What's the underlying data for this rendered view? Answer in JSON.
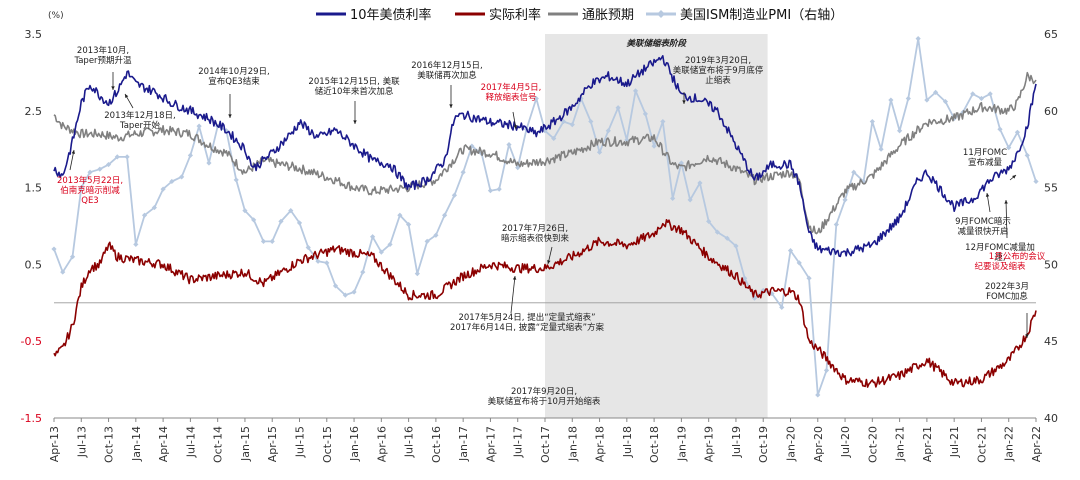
{
  "chart_data": {
    "type": "line",
    "title": "",
    "ylabel_left": "(%)",
    "ylabel_right": "",
    "left_ylim": [
      -1.5,
      3.5
    ],
    "left_yticks": [
      "3.5",
      "2.5",
      "1.5",
      "0.5",
      "-0.5",
      "-1.5"
    ],
    "left_ytick_values": [
      3.5,
      2.5,
      1.5,
      0.5,
      -0.5,
      -1.5
    ],
    "right_ylim": [
      40,
      65
    ],
    "right_yticks": [
      "65",
      "60",
      "55",
      "50",
      "45",
      "40"
    ],
    "right_ytick_values": [
      65,
      60,
      55,
      50,
      45,
      40
    ],
    "x_range": [
      2013.25,
      2022.25
    ],
    "xticks": [
      "Apr-13",
      "Jul-13",
      "Oct-13",
      "Jan-14",
      "Apr-14",
      "Jul-14",
      "Oct-14",
      "Jan-15",
      "Apr-15",
      "Jul-15",
      "Oct-15",
      "Jan-16",
      "Apr-16",
      "Jul-16",
      "Oct-16",
      "Jan-17",
      "Apr-17",
      "Jul-17",
      "Oct-17",
      "Jan-18",
      "Apr-18",
      "Jul-18",
      "Oct-18",
      "Jan-19",
      "Apr-19",
      "Jul-19",
      "Oct-19",
      "Jan-20",
      "Apr-20",
      "Jul-20",
      "Oct-20",
      "Jan-21",
      "Apr-21",
      "Jul-21",
      "Oct-21",
      "Jan-22",
      "Apr-22"
    ],
    "shaded_region": {
      "x": [
        2017.75,
        2019.79
      ],
      "label": "美联储缩表阶段",
      "color": "#e6e6e6"
    },
    "series": [
      {
        "name": "10年美债利率",
        "color": "#1a1a8c",
        "axis": "left",
        "x": [
          2013.25,
          2013.33,
          2013.42,
          2013.5,
          2013.58,
          2013.67,
          2013.75,
          2013.83,
          2013.92,
          2014.0,
          2014.17,
          2014.33,
          2014.5,
          2014.67,
          2014.83,
          2015.0,
          2015.08,
          2015.25,
          2015.42,
          2015.5,
          2015.67,
          2015.83,
          2016.0,
          2016.17,
          2016.33,
          2016.5,
          2016.67,
          2016.83,
          2016.92,
          2017.0,
          2017.25,
          2017.5,
          2017.67,
          2017.83,
          2018.0,
          2018.17,
          2018.33,
          2018.5,
          2018.67,
          2018.83,
          2019.0,
          2019.17,
          2019.33,
          2019.5,
          2019.67,
          2019.83,
          2020.0,
          2020.08,
          2020.17,
          2020.25,
          2020.5,
          2020.75,
          2021.0,
          2021.17,
          2021.25,
          2021.5,
          2021.67,
          2021.83,
          2022.0,
          2022.08,
          2022.17,
          2022.25
        ],
        "values": [
          1.75,
          1.65,
          2.1,
          2.6,
          2.85,
          2.7,
          2.6,
          2.75,
          3.0,
          2.85,
          2.75,
          2.6,
          2.5,
          2.4,
          2.25,
          2.0,
          1.75,
          1.95,
          2.2,
          2.35,
          2.15,
          2.25,
          2.05,
          1.85,
          1.8,
          1.5,
          1.6,
          1.85,
          2.4,
          2.45,
          2.35,
          2.3,
          2.2,
          2.35,
          2.55,
          2.85,
          2.95,
          2.85,
          3.05,
          3.2,
          2.7,
          2.65,
          2.5,
          2.05,
          1.6,
          1.8,
          1.8,
          1.55,
          0.9,
          0.7,
          0.65,
          0.75,
          1.1,
          1.6,
          1.7,
          1.25,
          1.35,
          1.6,
          1.75,
          1.95,
          2.3,
          2.85
        ]
      },
      {
        "name": "实际利率",
        "color": "#8b0000",
        "axis": "left",
        "x": [
          2013.25,
          2013.33,
          2013.42,
          2013.5,
          2013.58,
          2013.67,
          2013.75,
          2013.83,
          2014.0,
          2014.25,
          2014.5,
          2014.75,
          2015.0,
          2015.17,
          2015.5,
          2015.83,
          2016.0,
          2016.17,
          2016.5,
          2016.75,
          2017.0,
          2017.25,
          2017.5,
          2017.75,
          2018.0,
          2018.25,
          2018.5,
          2018.75,
          2018.83,
          2019.0,
          2019.25,
          2019.5,
          2019.67,
          2019.83,
          2020.0,
          2020.08,
          2020.17,
          2020.25,
          2020.5,
          2020.75,
          2021.0,
          2021.25,
          2021.5,
          2021.75,
          2022.0,
          2022.08,
          2022.17,
          2022.25
        ],
        "values": [
          -0.7,
          -0.6,
          -0.3,
          0.2,
          0.45,
          0.5,
          0.75,
          0.6,
          0.55,
          0.5,
          0.3,
          0.35,
          0.4,
          0.25,
          0.55,
          0.7,
          0.65,
          0.6,
          0.1,
          0.1,
          0.35,
          0.5,
          0.45,
          0.45,
          0.6,
          0.8,
          0.75,
          0.9,
          1.05,
          0.95,
          0.6,
          0.35,
          0.1,
          0.15,
          0.15,
          0.05,
          -0.5,
          -0.6,
          -1.0,
          -1.05,
          -0.95,
          -0.75,
          -1.05,
          -1.0,
          -0.75,
          -0.6,
          -0.4,
          -0.1
        ]
      },
      {
        "name": "通胀预期",
        "color": "#808080",
        "axis": "left",
        "x": [
          2013.25,
          2013.33,
          2013.5,
          2013.67,
          2013.83,
          2014.0,
          2014.25,
          2014.5,
          2014.67,
          2014.83,
          2015.0,
          2015.17,
          2015.5,
          2015.83,
          2016.0,
          2016.17,
          2016.5,
          2016.75,
          2017.0,
          2017.25,
          2017.5,
          2017.75,
          2018.0,
          2018.25,
          2018.5,
          2018.75,
          2018.92,
          2019.0,
          2019.25,
          2019.5,
          2019.67,
          2019.83,
          2020.0,
          2020.08,
          2020.17,
          2020.25,
          2020.5,
          2020.75,
          2021.0,
          2021.25,
          2021.5,
          2021.75,
          2022.0,
          2022.08,
          2022.17,
          2022.25
        ],
        "values": [
          2.45,
          2.3,
          2.2,
          2.2,
          2.15,
          2.2,
          2.25,
          2.2,
          2.05,
          1.95,
          1.7,
          1.85,
          1.75,
          1.6,
          1.5,
          1.45,
          1.5,
          1.6,
          2.0,
          1.95,
          1.8,
          1.85,
          1.95,
          2.1,
          2.1,
          2.15,
          1.8,
          1.75,
          1.9,
          1.75,
          1.6,
          1.65,
          1.7,
          1.6,
          1.0,
          0.9,
          1.45,
          1.65,
          2.05,
          2.35,
          2.4,
          2.55,
          2.5,
          2.6,
          2.95,
          2.9
        ]
      },
      {
        "name": "美国ISM制造业PMI（右轴）",
        "color": "#b7c9e0",
        "axis": "right",
        "x": [
          2013.25,
          2013.33,
          2013.42,
          2013.5,
          2013.58,
          2013.67,
          2013.75,
          2013.83,
          2013.92,
          2014.0,
          2014.08,
          2014.17,
          2014.25,
          2014.33,
          2014.42,
          2014.5,
          2014.58,
          2014.67,
          2014.75,
          2014.83,
          2014.92,
          2015.0,
          2015.08,
          2015.17,
          2015.25,
          2015.33,
          2015.42,
          2015.5,
          2015.58,
          2015.67,
          2015.75,
          2015.83,
          2015.92,
          2016.0,
          2016.08,
          2016.17,
          2016.25,
          2016.33,
          2016.42,
          2016.5,
          2016.58,
          2016.67,
          2016.75,
          2016.83,
          2016.92,
          2017.0,
          2017.08,
          2017.17,
          2017.25,
          2017.33,
          2017.42,
          2017.5,
          2017.58,
          2017.67,
          2017.75,
          2017.83,
          2017.92,
          2018.0,
          2018.08,
          2018.17,
          2018.25,
          2018.33,
          2018.42,
          2018.5,
          2018.58,
          2018.67,
          2018.75,
          2018.83,
          2018.92,
          2019.0,
          2019.08,
          2019.17,
          2019.25,
          2019.33,
          2019.42,
          2019.5,
          2019.58,
          2019.67,
          2019.75,
          2019.83,
          2019.92,
          2020.0,
          2020.08,
          2020.17,
          2020.25,
          2020.33,
          2020.42,
          2020.5,
          2020.58,
          2020.67,
          2020.75,
          2020.83,
          2020.92,
          2021.0,
          2021.08,
          2021.17,
          2021.25,
          2021.33,
          2021.42,
          2021.5,
          2021.58,
          2021.67,
          2021.75,
          2021.83,
          2021.92,
          2022.0,
          2022.08,
          2022.17,
          2022.25
        ],
        "values": [
          51,
          49.5,
          50.5,
          55,
          56,
          56.2,
          56.5,
          57,
          57,
          51.3,
          53.2,
          53.7,
          54.9,
          55.4,
          55.7,
          57.1,
          59,
          56.6,
          59,
          58.7,
          55.5,
          53.5,
          52.9,
          51.5,
          51.5,
          52.8,
          53.5,
          52.7,
          51.1,
          50.2,
          50.1,
          48.6,
          48,
          48.2,
          49.5,
          51.8,
          50.8,
          51.3,
          53.2,
          52.6,
          49.4,
          51.5,
          51.9,
          53.2,
          54.5,
          56,
          57.7,
          57.2,
          54.8,
          54.9,
          57.8,
          56.3,
          58.8,
          60.8,
          58.7,
          58.2,
          59.3,
          59.1,
          60.8,
          59.3,
          57.3,
          58.7,
          60.2,
          58.1,
          61.3,
          59.8,
          57.7,
          59.3,
          54.3,
          56.6,
          54.2,
          55.3,
          52.8,
          52.1,
          51.7,
          51.2,
          49.1,
          47.8,
          48.3,
          48.1,
          47.2,
          50.9,
          50.1,
          49.1,
          41.5,
          43.1,
          52.6,
          54.2,
          56,
          55.4,
          59.3,
          57.5,
          60.7,
          58.7,
          60.8,
          64.7,
          60.7,
          61.2,
          60.6,
          59.5,
          59.9,
          61.1,
          60.8,
          61.1,
          58.8,
          57.6,
          58.6,
          57.1,
          55.4
        ]
      }
    ],
    "annotations": [
      {
        "lines": [
          "2013年10月,",
          "Taper预期升温"
        ],
        "color": "normal"
      },
      {
        "lines": [
          "2013年12月18日,",
          "Taper开始"
        ],
        "color": "normal"
      },
      {
        "lines": [
          "2013年5月22日,",
          "伯南克暗示削减",
          "QE3"
        ],
        "color": "red"
      },
      {
        "lines": [
          "2014年10月29日,",
          "宣布QE3结束"
        ],
        "color": "normal"
      },
      {
        "lines": [
          "2015年12月15日, 美联",
          "储近10年来首次加息"
        ],
        "color": "normal"
      },
      {
        "lines": [
          "2016年12月15日,",
          "美联储再次加息"
        ],
        "color": "normal"
      },
      {
        "lines": [
          "2017年4月5日,",
          "释放缩表信号"
        ],
        "color": "red"
      },
      {
        "lines": [
          "2019年3月20日,",
          "美联储宣布将于9月底停",
          "止缩表"
        ],
        "color": "normal"
      },
      {
        "lines": [
          "2017年7月26日,",
          "暗示缩表很快到来"
        ],
        "color": "normal"
      },
      {
        "lines": [
          "2017年5月24日, 提出“定量式缩表”",
          "2017年6月14日, 披露“定量式缩表”方案"
        ],
        "color": "normal"
      },
      {
        "lines": [
          "2017年9月20日,",
          "美联储宣布将于10月开始缩表"
        ],
        "color": "normal"
      },
      {
        "lines": [
          "11月FOMC",
          "宣布减量"
        ],
        "color": "normal"
      },
      {
        "lines": [
          "9月FOMC暗示",
          "减量很快开启"
        ],
        "color": "normal"
      },
      {
        "lines": [
          "12月FOMC减量加",
          "速, "
        ],
        "color": "normal"
      },
      {
        "lines": [
          "1月公布的会议",
          "纪要谈及缩表"
        ],
        "color": "red"
      },
      {
        "lines": [
          "2022年3月",
          "FOMC加息"
        ],
        "color": "normal"
      }
    ]
  },
  "legend": [
    {
      "label": "10年美债利率",
      "color": "#1a1a8c"
    },
    {
      "label": "实际利率",
      "color": "#8b0000"
    },
    {
      "label": "通胀预期",
      "color": "#808080"
    },
    {
      "label": "美国ISM制造业PMI（右轴）",
      "color": "#b7c9e0"
    }
  ]
}
